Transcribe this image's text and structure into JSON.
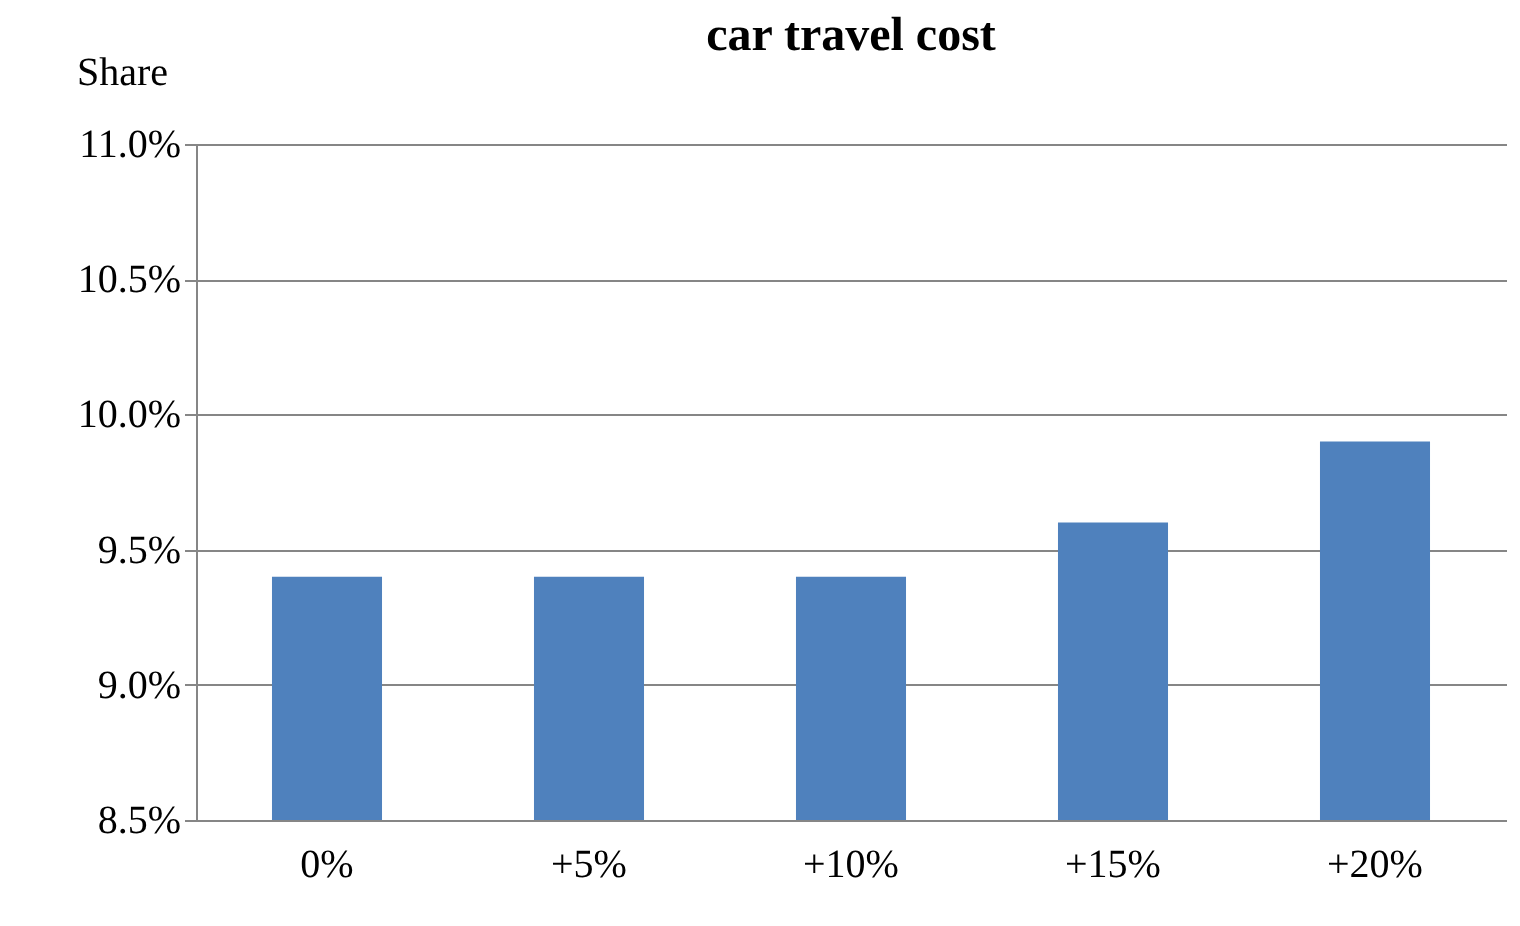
{
  "chart_data": {
    "type": "bar",
    "title": "car travel cost",
    "ylabel": "Share",
    "categories": [
      "0%",
      "+5%",
      "+10%",
      "+15%",
      "+20%"
    ],
    "values": [
      9.4,
      9.4,
      9.4,
      9.6,
      9.9
    ],
    "color": "#4f81bd",
    "ylim": [
      8.5,
      11.0
    ],
    "yticks": [
      {
        "value": 8.5,
        "label": "8.5%"
      },
      {
        "value": 9.0,
        "label": "9.0%"
      },
      {
        "value": 9.5,
        "label": "9.5%"
      },
      {
        "value": 10.0,
        "label": "10.0%"
      },
      {
        "value": 10.5,
        "label": "10.5%"
      },
      {
        "value": 11.0,
        "label": "11.0%"
      }
    ],
    "grid": "y"
  }
}
